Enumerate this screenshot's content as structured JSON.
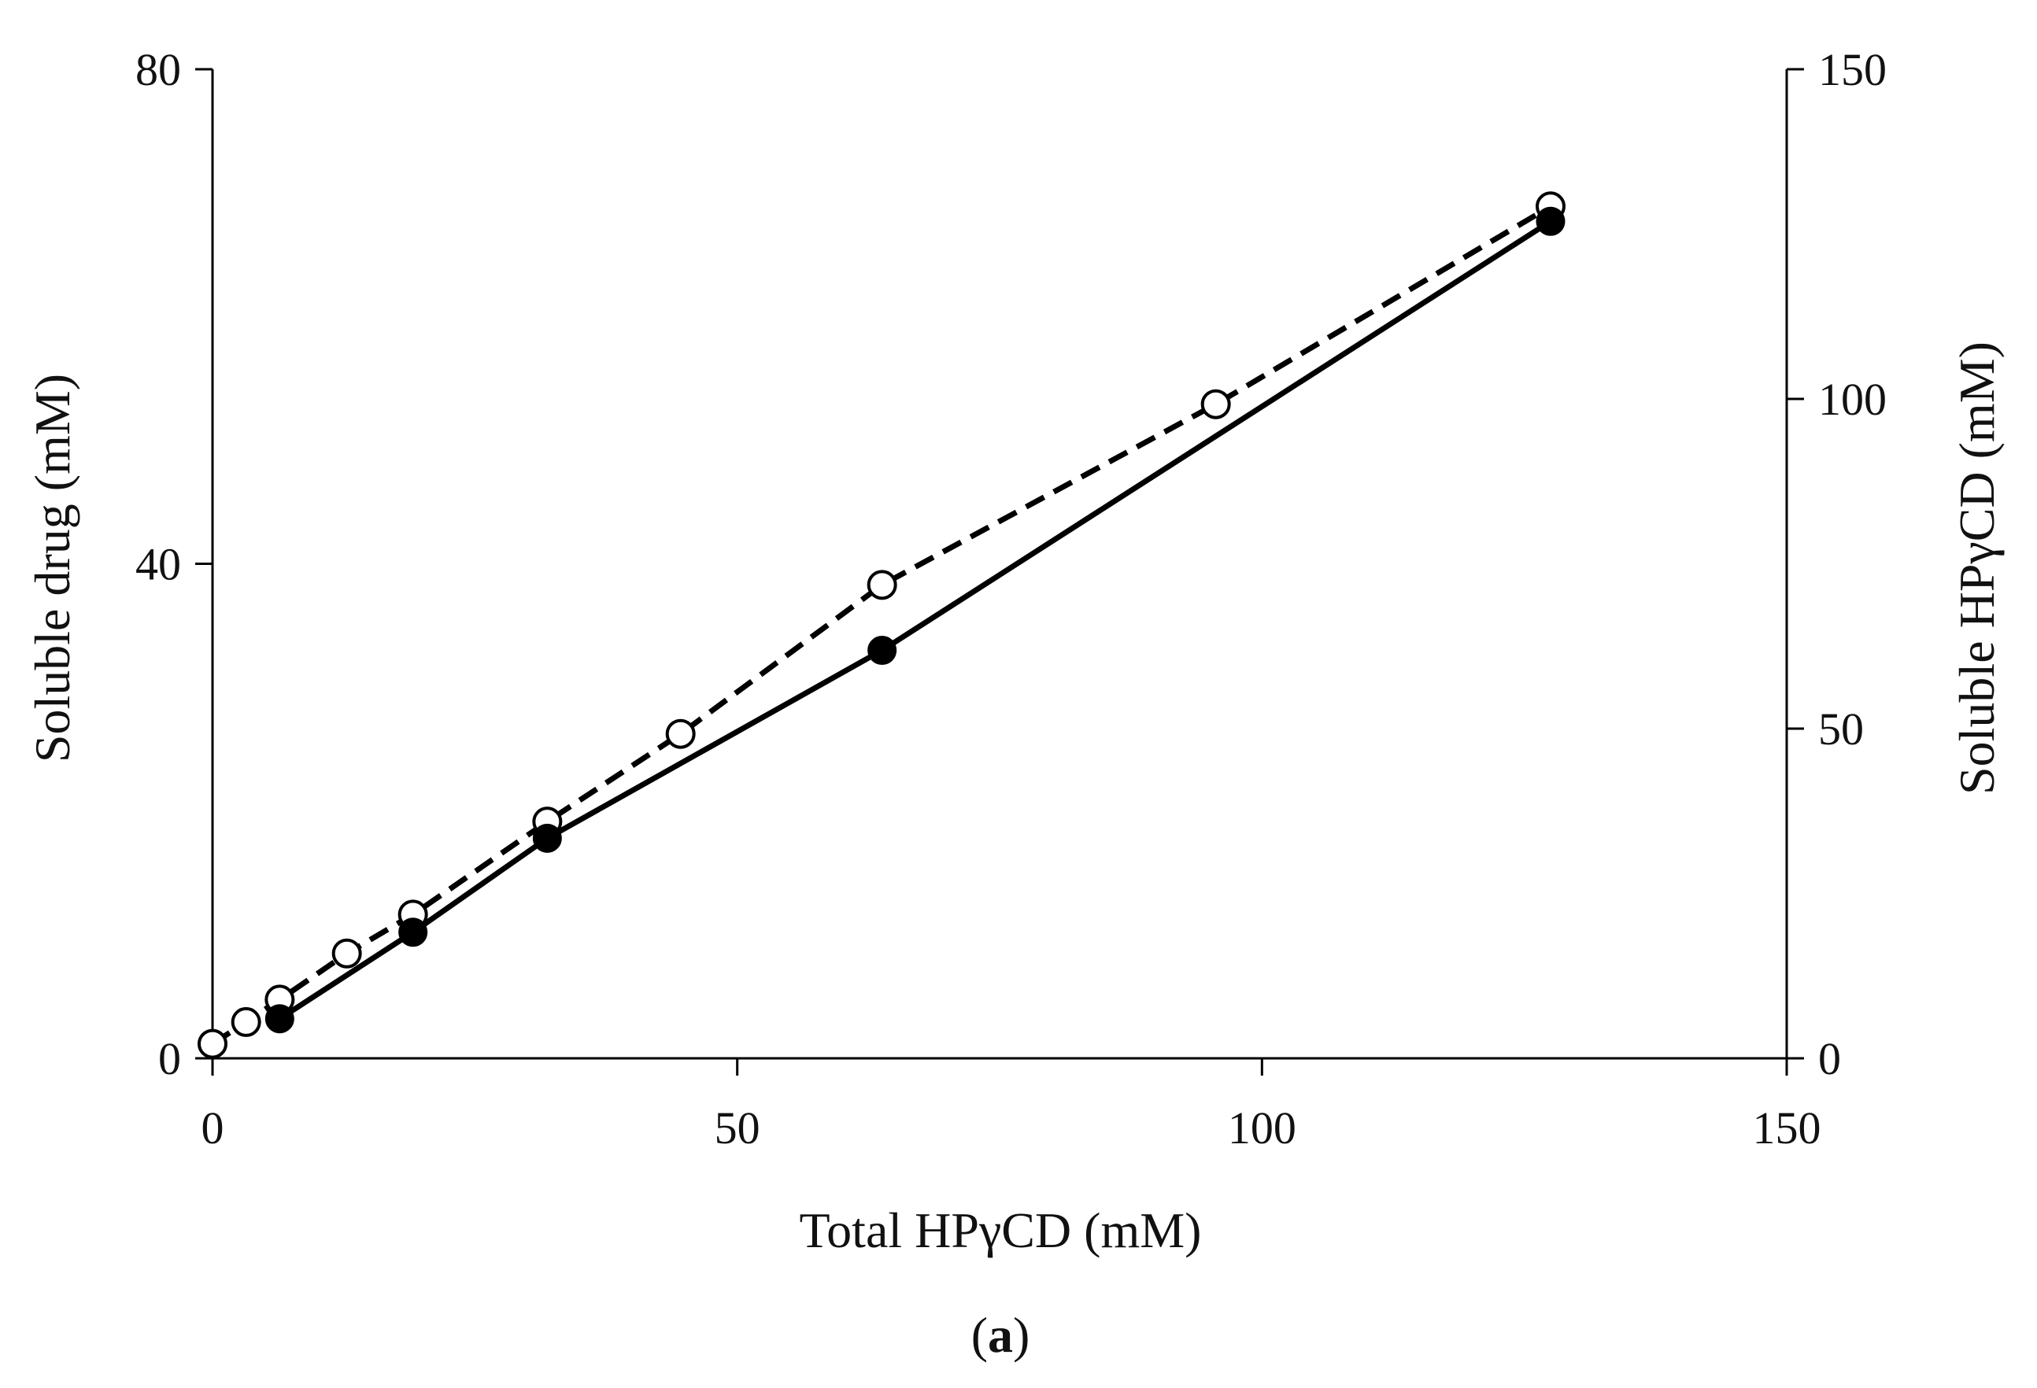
{
  "chart_data": {
    "type": "line",
    "title": "",
    "panel_label": {
      "open": "(",
      "letter": "a",
      "close": ")"
    },
    "xlabel": "Total HPγCD (mM)",
    "ylabel": "Soluble drug (mM)",
    "y2label": "Soluble HPγCD (mM)",
    "xlim": [
      0,
      150
    ],
    "ylim": [
      0,
      80
    ],
    "y2lim": [
      0,
      150
    ],
    "x_ticks": [
      "0",
      "50",
      "100",
      "150"
    ],
    "y_ticks": [
      "0",
      "40",
      "80"
    ],
    "y2_ticks": [
      "0",
      "50",
      "100",
      "150"
    ],
    "grid": false,
    "legend": "none",
    "series": [
      {
        "axis": "left",
        "line_style": "solid",
        "marker": "filled-circle",
        "color": "#000000",
        "x": [
          6.4,
          19.1,
          31.9,
          63.8,
          127.5
        ],
        "y": [
          3.2,
          10.2,
          17.8,
          33.0,
          67.7
        ]
      },
      {
        "axis": "right",
        "line_style": "dashed",
        "marker": "open-circle",
        "color": "#000000",
        "x": [
          0,
          3.2,
          6.4,
          12.8,
          19.1,
          31.9,
          44.6,
          63.8,
          95.6,
          127.5
        ],
        "y": [
          2.2,
          5.5,
          8.9,
          15.9,
          21.8,
          35.9,
          49.2,
          71.8,
          99.2,
          129.2
        ]
      }
    ]
  }
}
